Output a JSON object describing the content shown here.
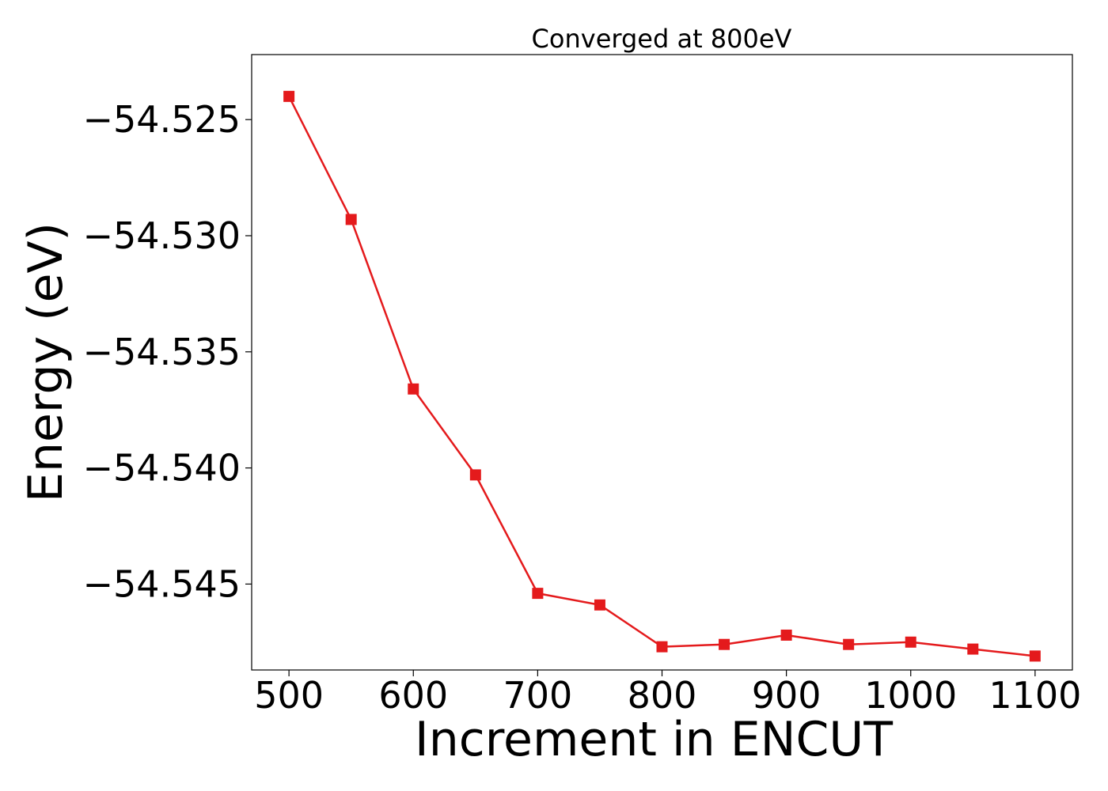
{
  "chart_data": {
    "type": "line",
    "title": "Converged at 800eV",
    "xlabel": "Increment in ENCUT",
    "ylabel": "Energy (eV)",
    "x": [
      500,
      550,
      600,
      650,
      700,
      750,
      800,
      850,
      900,
      950,
      1000,
      1050,
      1100
    ],
    "xlim": [
      470,
      1130
    ],
    "ylim": [
      -54.5487,
      -54.5222
    ],
    "xticks": [
      500,
      600,
      700,
      800,
      900,
      1000,
      1100
    ],
    "xtick_labels": [
      "500",
      "600",
      "700",
      "800",
      "900",
      "1000",
      "1100"
    ],
    "yticks": [
      -54.525,
      -54.53,
      -54.535,
      -54.54,
      -54.545
    ],
    "ytick_labels": [
      "−54.525",
      "−54.530",
      "−54.535",
      "−54.540",
      "−54.545"
    ],
    "grid": false,
    "series": [
      {
        "marker": "square",
        "color": "#e41a1c",
        "values": [
          -54.524,
          -54.5293,
          -54.5366,
          -54.5403,
          -54.5454,
          -54.5459,
          -54.5477,
          -54.5476,
          -54.5472,
          -54.5476,
          -54.5475,
          -54.5478,
          -54.5481
        ]
      }
    ]
  }
}
